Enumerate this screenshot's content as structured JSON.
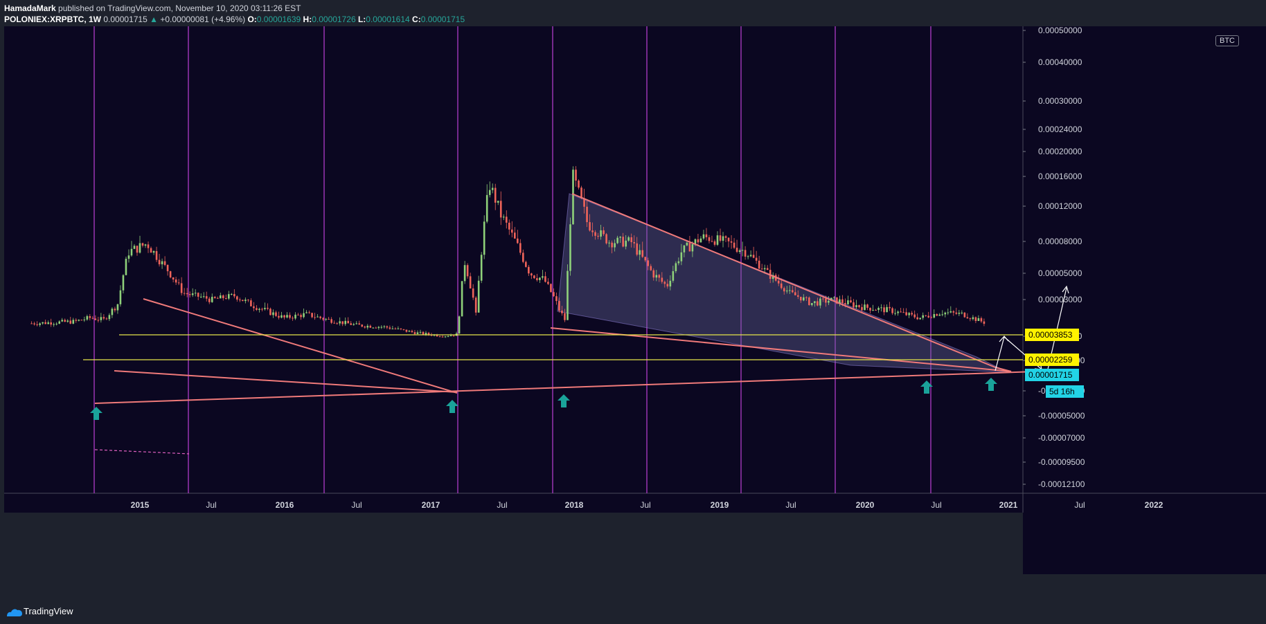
{
  "header": {
    "author": "HamadaMark",
    "published_text": "published on TradingView.com, November 10, 2020 03:11:26 EST",
    "symbol": "POLONIEX:XRPBTC, 1W",
    "last": "0.00001715",
    "arrow": "▲",
    "change": "+0.00000081 (+4.96%)",
    "o_label": "O:",
    "o_value": "0.00001639",
    "h_label": "H:",
    "h_value": "0.00001726",
    "l_label": "L:",
    "l_value": "0.00001614",
    "c_label": "C:",
    "c_value": "0.00001715"
  },
  "footer": {
    "brand": "TradingView"
  },
  "colors": {
    "background": "#0b0721",
    "up": "#8fd17a",
    "down": "#f0645a",
    "trendline": "#f07a7a",
    "horizontal": "#e6e64a",
    "time_marker": "#b03cc8",
    "target_arrow": "#ffffff",
    "buy_arrow": "#1aa39a",
    "last_price_bg": "#22d3e6",
    "level_bg": "#fff200"
  },
  "chart_data": {
    "type": "candlestick",
    "symbol": "POLONIEX:XRPBTC",
    "interval": "1W",
    "currency": "BTC",
    "y_tick_labels": [
      "0.00050000",
      "0.00040000",
      "0.00030000",
      "0.00024000",
      "0.00020000",
      "0.00016000",
      "0.00012000",
      "0.00008000",
      "0.00005000",
      "0.00003000",
      "0.00001000",
      "-0.00001000",
      "-0.00003000",
      "-0.00005000",
      "-0.00007000",
      "-0.00009500",
      "-0.00012100"
    ],
    "x_tick_labels": [
      "2015",
      "Jul",
      "2016",
      "Jul",
      "2017",
      "Jul",
      "2018",
      "Jul",
      "2019",
      "Jul",
      "2020",
      "Jul",
      "2021",
      "Jul",
      "2022"
    ],
    "price_labels": [
      "0.00003853",
      "0.00002259",
      "0.00001715"
    ],
    "countdown": "5d 16h",
    "horizontal_levels": [
      3.853e-05,
      2.259e-05
    ],
    "last_price": 1.715e-05,
    "pattern": "falling wedge",
    "price_path": [
      {
        "t": 2014.25,
        "p": 1.7e-05
      },
      {
        "t": 2014.55,
        "p": 1.8e-05
      },
      {
        "t": 2014.65,
        "p": 2e-05
      },
      {
        "t": 2014.75,
        "p": 1.9e-05
      },
      {
        "t": 2014.85,
        "p": 2.8e-05
      },
      {
        "t": 2014.92,
        "p": 7e-05
      },
      {
        "t": 2015.05,
        "p": 7.8e-05
      },
      {
        "t": 2015.15,
        "p": 6e-05
      },
      {
        "t": 2015.3,
        "p": 3.5e-05
      },
      {
        "t": 2015.5,
        "p": 3e-05
      },
      {
        "t": 2015.65,
        "p": 3.3e-05
      },
      {
        "t": 2015.75,
        "p": 2.8e-05
      },
      {
        "t": 2015.9,
        "p": 2.3e-05
      },
      {
        "t": 2016.0,
        "p": 2e-05
      },
      {
        "t": 2016.15,
        "p": 2.2e-05
      },
      {
        "t": 2016.3,
        "p": 1.9e-05
      },
      {
        "t": 2016.5,
        "p": 1.6e-05
      },
      {
        "t": 2016.7,
        "p": 1.5e-05
      },
      {
        "t": 2016.9,
        "p": 1.2e-05
      },
      {
        "t": 2017.1,
        "p": 1e-05
      },
      {
        "t": 2017.2,
        "p": 1.1e-05
      },
      {
        "t": 2017.25,
        "p": 6e-05
      },
      {
        "t": 2017.33,
        "p": 2e-05
      },
      {
        "t": 2017.42,
        "p": 0.00015
      },
      {
        "t": 2017.5,
        "p": 0.00011
      },
      {
        "t": 2017.6,
        "p": 8e-05
      },
      {
        "t": 2017.7,
        "p": 5e-05
      },
      {
        "t": 2017.8,
        "p": 4.5e-05
      },
      {
        "t": 2017.9,
        "p": 2.5e-05
      },
      {
        "t": 2017.95,
        "p": 1.8e-05
      },
      {
        "t": 2018.0,
        "p": 0.00016
      },
      {
        "t": 2018.1,
        "p": 0.0001
      },
      {
        "t": 2018.25,
        "p": 8e-05
      },
      {
        "t": 2018.4,
        "p": 8e-05
      },
      {
        "t": 2018.55,
        "p": 5e-05
      },
      {
        "t": 2018.65,
        "p": 4e-05
      },
      {
        "t": 2018.75,
        "p": 7e-05
      },
      {
        "t": 2018.9,
        "p": 8.5e-05
      },
      {
        "t": 2019.05,
        "p": 8e-05
      },
      {
        "t": 2019.2,
        "p": 7e-05
      },
      {
        "t": 2019.35,
        "p": 5e-05
      },
      {
        "t": 2019.5,
        "p": 3.5e-05
      },
      {
        "t": 2019.65,
        "p": 2.8e-05
      },
      {
        "t": 2019.8,
        "p": 3e-05
      },
      {
        "t": 2020.0,
        "p": 2.6e-05
      },
      {
        "t": 2020.2,
        "p": 2.4e-05
      },
      {
        "t": 2020.4,
        "p": 2e-05
      },
      {
        "t": 2020.55,
        "p": 2.3e-05
      },
      {
        "t": 2020.7,
        "p": 2.2e-05
      },
      {
        "t": 2020.86,
        "p": 1.71e-05
      }
    ],
    "buy_signal_dates": [
      2014.3,
      2017.2,
      2017.95,
      2020.47,
      2020.9
    ]
  }
}
